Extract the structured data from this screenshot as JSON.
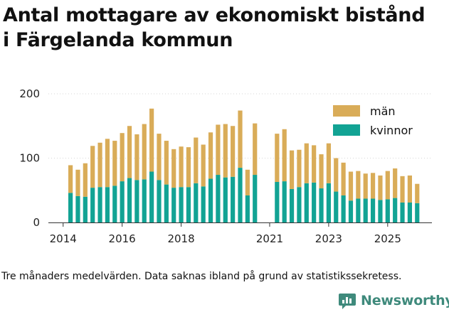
{
  "title": {
    "line1": "Antal mottagare av ekonomiskt bistånd",
    "line2": "i Färgelanda kommun"
  },
  "caption": "Tre månaders medelvärden. Data saknas ibland på grund av statistikssekretess.",
  "brand": {
    "name": "Newsworthy",
    "icon": "newsworthy-logo-icon",
    "color": "#3f8a7c"
  },
  "colors": {
    "man": "#d9ac58",
    "kvinnor": "#12a394",
    "grid": "#d6d6d6",
    "axis": "#333333"
  },
  "chart_data": {
    "type": "bar",
    "stacked": true,
    "title": "Antal mottagare av ekonomiskt bistånd i Färgelanda kommun",
    "xlabel": "",
    "ylabel": "",
    "ylim": [
      0,
      200
    ],
    "yticks": [
      0,
      100,
      200
    ],
    "xlim": [
      2013.5,
      2026.5
    ],
    "xticks": [
      2014,
      2016,
      2018,
      2021,
      2023,
      2025
    ],
    "legend": {
      "position": "top-right",
      "entries": [
        "män",
        "kvinnor"
      ]
    },
    "x": [
      2014.25,
      2014.5,
      2014.75,
      2015.0,
      2015.25,
      2015.5,
      2015.75,
      2016.0,
      2016.25,
      2016.5,
      2016.75,
      2017.0,
      2017.25,
      2017.5,
      2017.75,
      2018.0,
      2018.25,
      2018.5,
      2018.75,
      2019.0,
      2019.25,
      2019.5,
      2019.75,
      2020.0,
      2020.25,
      2020.5,
      2021.25,
      2021.5,
      2021.75,
      2022.0,
      2022.25,
      2022.5,
      2022.75,
      2023.0,
      2023.25,
      2023.5,
      2023.75,
      2024.0,
      2024.25,
      2024.5,
      2024.75,
      2025.0,
      2025.25,
      2025.5,
      2025.75,
      2026.0
    ],
    "series": [
      {
        "name": "kvinnor",
        "values": [
          46,
          41,
          40,
          54,
          55,
          55,
          57,
          64,
          69,
          66,
          67,
          79,
          66,
          59,
          54,
          55,
          55,
          61,
          56,
          68,
          74,
          70,
          71,
          85,
          42,
          74,
          63,
          64,
          52,
          55,
          61,
          62,
          53,
          61,
          48,
          42,
          34,
          37,
          37,
          37,
          35,
          36,
          38,
          31,
          31,
          30
        ]
      },
      {
        "name": "män",
        "values": [
          43,
          41,
          52,
          65,
          69,
          75,
          70,
          75,
          81,
          71,
          86,
          98,
          72,
          68,
          60,
          63,
          62,
          71,
          65,
          72,
          78,
          83,
          79,
          89,
          40,
          80,
          75,
          81,
          60,
          58,
          62,
          58,
          53,
          62,
          52,
          51,
          45,
          43,
          39,
          40,
          38,
          44,
          46,
          41,
          42,
          30
        ]
      }
    ]
  }
}
